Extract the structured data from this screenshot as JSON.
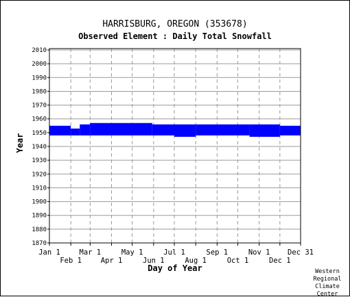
{
  "chart_data": {
    "type": "scatter",
    "title": "HARRISBURG, OREGON   (353678)",
    "subtitle": "Observed Element : Daily Total Snowfall",
    "xlabel": "Day of Year",
    "ylabel": "Year",
    "ylim": [
      1870,
      2011
    ],
    "y_ticks": [
      2010,
      2000,
      1990,
      1980,
      1970,
      1960,
      1950,
      1940,
      1930,
      1920,
      1910,
      1900,
      1890,
      1880,
      1870
    ],
    "x_ticks_top_row": [
      {
        "day": 1,
        "label": "Jan 1"
      },
      {
        "day": 60,
        "label": "Mar 1"
      },
      {
        "day": 121,
        "label": "May 1"
      },
      {
        "day": 182,
        "label": "Jul 1"
      },
      {
        "day": 244,
        "label": "Sep 1"
      },
      {
        "day": 305,
        "label": "Nov 1"
      },
      {
        "day": 365,
        "label": "Dec 31"
      }
    ],
    "x_ticks_bottom_row": [
      {
        "day": 32,
        "label": "Feb 1"
      },
      {
        "day": 91,
        "label": "Apr 1"
      },
      {
        "day": 152,
        "label": "Jun 1"
      },
      {
        "day": 213,
        "label": "Aug 1"
      },
      {
        "day": 274,
        "label": "Oct 1"
      },
      {
        "day": 335,
        "label": "Dec 1"
      }
    ],
    "grid": true,
    "series_color": "#0000ff",
    "observed_coverage": [
      {
        "day_start": 1,
        "day_end": 32,
        "year_start": 1948,
        "year_end": 1955
      },
      {
        "day_start": 32,
        "day_end": 45,
        "year_start": 1948,
        "year_end": 1953
      },
      {
        "day_start": 45,
        "day_end": 60,
        "year_start": 1948,
        "year_end": 1956
      },
      {
        "day_start": 60,
        "day_end": 150,
        "year_start": 1948,
        "year_end": 1957
      },
      {
        "day_start": 150,
        "day_end": 182,
        "year_start": 1948,
        "year_end": 1956
      },
      {
        "day_start": 182,
        "day_end": 213,
        "year_start": 1947,
        "year_end": 1956
      },
      {
        "day_start": 213,
        "day_end": 291,
        "year_start": 1948,
        "year_end": 1956
      },
      {
        "day_start": 291,
        "day_end": 335,
        "year_start": 1947,
        "year_end": 1956
      },
      {
        "day_start": 335,
        "day_end": 365,
        "year_start": 1948,
        "year_end": 1955
      }
    ]
  },
  "credit_lines": [
    "Western",
    "Regional",
    "Climate",
    "Center"
  ]
}
